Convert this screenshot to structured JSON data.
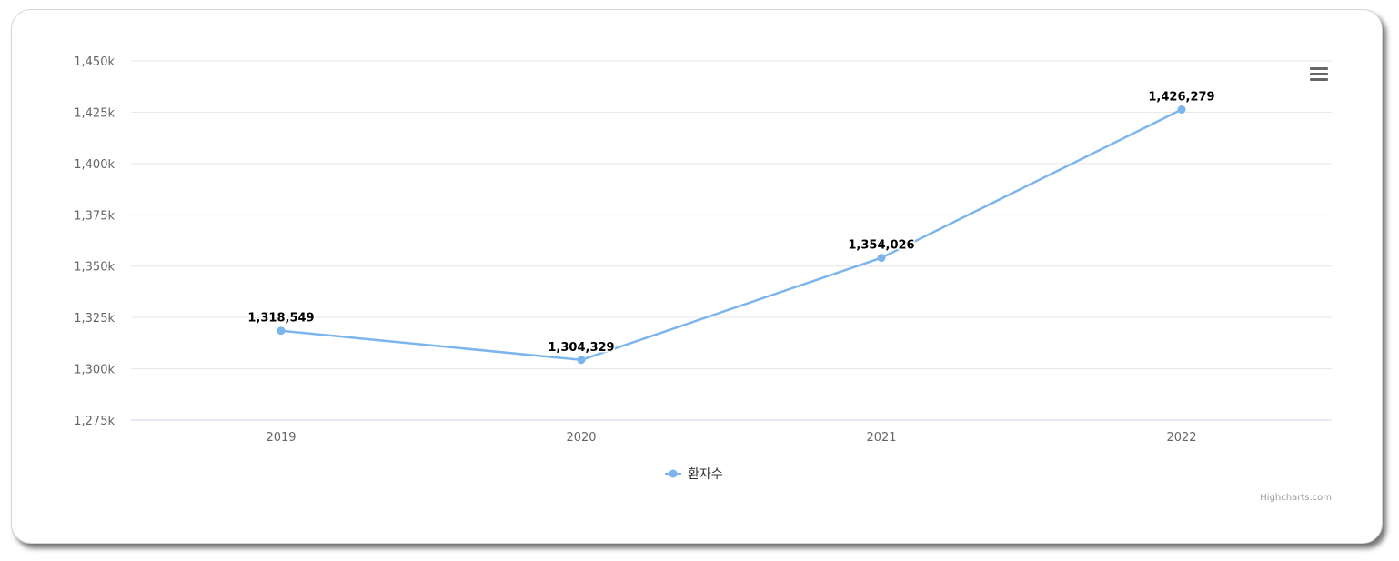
{
  "chart_data": {
    "type": "line",
    "categories": [
      "2019",
      "2020",
      "2021",
      "2022"
    ],
    "series": [
      {
        "name": "환자수",
        "values": [
          1318549,
          1304329,
          1354026,
          1426279
        ],
        "value_labels": [
          "1,318,549",
          "1,304,329",
          "1,354,026",
          "1,426,279"
        ],
        "color": "#7cb5ec"
      }
    ],
    "y_ticks": [
      1275000,
      1300000,
      1325000,
      1350000,
      1375000,
      1400000,
      1425000,
      1450000
    ],
    "y_tick_labels": [
      "1,275k",
      "1,300k",
      "1,325k",
      "1,350k",
      "1,375k",
      "1,400k",
      "1,425k",
      "1,450k"
    ],
    "ylim": [
      1275000,
      1450000
    ],
    "title": "",
    "xlabel": "",
    "ylabel": "",
    "grid": true,
    "legend": "bottom-center"
  },
  "credits": "Highcharts.com",
  "colors": {
    "series": "#7cb5ec",
    "grid": "#e6e6e6",
    "axis_line": "#ccd6eb",
    "menu": "#666666"
  },
  "menu_icon": "hamburger-menu-icon"
}
